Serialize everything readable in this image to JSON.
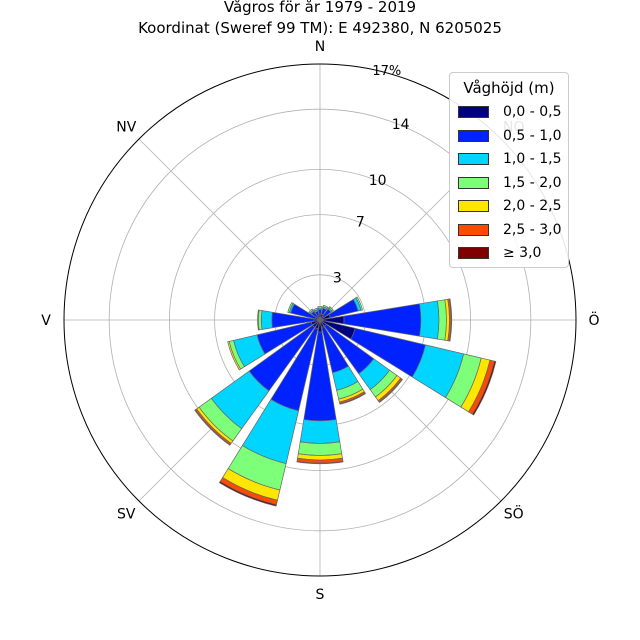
{
  "title_line1": "Vågros för år 1979 - 2019",
  "title_line2": "Koordinat (Sweref 99 TM): E 492380, N 6205025",
  "chart_data": {
    "type": "polar-bar",
    "directions": [
      "N",
      "NNÖ",
      "NÖ",
      "ÖNÖ",
      "Ö",
      "ÖSÖ",
      "SÖ",
      "SSÖ",
      "S",
      "SSV",
      "SV",
      "VSV",
      "V",
      "VNV",
      "NV",
      "NNV"
    ],
    "direction_labels": [
      "N",
      "NV",
      "V",
      "SV",
      "S",
      "SÖ",
      "Ö",
      "NÖ"
    ],
    "r_ticks": [
      3,
      7,
      10,
      14
    ],
    "r_tick_labels": [
      "3",
      "7",
      "10",
      "14"
    ],
    "r_max": 17,
    "r_max_label": "17%",
    "legend_title": "Våghöjd (m)",
    "series": [
      {
        "name": "0,0 - 0,5",
        "color": "#000080",
        "values": [
          0.4,
          0.4,
          0.3,
          0.7,
          1.6,
          2.4,
          0.5,
          0.5,
          0.8,
          0.6,
          0.6,
          0.6,
          0.4,
          0.3,
          0.2,
          0.3
        ]
      },
      {
        "name": "0,5 - 1,0",
        "color": "#0022ff",
        "values": [
          0.3,
          0.4,
          0.6,
          1.9,
          5.1,
          4.8,
          3.9,
          3.1,
          5.9,
          5.6,
          5.2,
          3.7,
          2.8,
          1.7,
          0.5,
          0.3
        ]
      },
      {
        "name": "1,0 - 1,5",
        "color": "#00d5ff",
        "values": [
          0.1,
          0.1,
          0.1,
          0.2,
          1.2,
          2.6,
          1.3,
          1.2,
          1.5,
          3.6,
          3.1,
          1.6,
          0.7,
          0.1,
          0.1,
          0.1
        ]
      },
      {
        "name": "1,5 - 2,0",
        "color": "#7dff7a",
        "values": [
          0.1,
          0.1,
          0.1,
          0.1,
          0.5,
          1.2,
          0.6,
          0.6,
          0.8,
          1.8,
          1.0,
          0.3,
          0.2,
          0.1,
          0.1,
          0.1
        ]
      },
      {
        "name": "2,0 - 2,5",
        "color": "#ffe600",
        "values": [
          0,
          0,
          0,
          0,
          0.2,
          0.6,
          0.3,
          0.2,
          0.3,
          0.7,
          0.2,
          0.1,
          0.05,
          0,
          0,
          0
        ]
      },
      {
        "name": "2,5 - 3,0",
        "color": "#ff4a00",
        "values": [
          0,
          0,
          0,
          0,
          0.1,
          0.3,
          0.1,
          0.1,
          0.2,
          0.3,
          0.1,
          0,
          0,
          0,
          0,
          0
        ]
      },
      {
        "name": "≥ 3,0",
        "color": "#800000",
        "values": [
          0,
          0,
          0,
          0,
          0.05,
          0.1,
          0.05,
          0.05,
          0.05,
          0.1,
          0.05,
          0,
          0,
          0,
          0,
          0
        ]
      }
    ]
  }
}
